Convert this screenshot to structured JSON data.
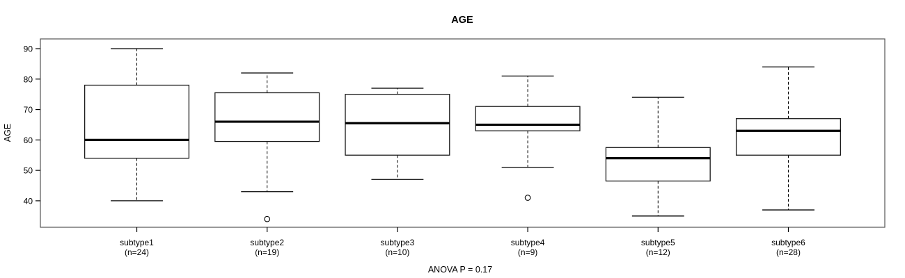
{
  "chart_data": {
    "type": "boxplot",
    "title": "AGE",
    "ylabel": "AGE",
    "annotation": "ANOVA P = 0.17",
    "yticks": [
      40,
      50,
      60,
      70,
      80,
      90
    ],
    "ylim": [
      31.3,
      93.2
    ],
    "grid": false,
    "legend": "none",
    "categories": [
      {
        "label": "subtype1",
        "sublabel": "(n=24)",
        "n": 24,
        "whisker_low": 40,
        "q1": 54,
        "median": 60,
        "q3": 78,
        "whisker_high": 90,
        "outliers": []
      },
      {
        "label": "subtype2",
        "sublabel": "(n=19)",
        "n": 19,
        "whisker_low": 43,
        "q1": 59.5,
        "median": 66,
        "q3": 75.5,
        "whisker_high": 82,
        "outliers": [
          34
        ]
      },
      {
        "label": "subtype3",
        "sublabel": "(n=10)",
        "n": 10,
        "whisker_low": 47,
        "q1": 55,
        "median": 65.5,
        "q3": 75,
        "whisker_high": 77,
        "outliers": []
      },
      {
        "label": "subtype4",
        "sublabel": "(n=9)",
        "n": 9,
        "whisker_low": 51,
        "q1": 63,
        "median": 65,
        "q3": 71,
        "whisker_high": 81,
        "outliers": [
          41
        ]
      },
      {
        "label": "subtype5",
        "sublabel": "(n=12)",
        "n": 12,
        "whisker_low": 35,
        "q1": 46.5,
        "median": 54,
        "q3": 57.5,
        "whisker_high": 74,
        "outliers": []
      },
      {
        "label": "subtype6",
        "sublabel": "(n=28)",
        "n": 28,
        "whisker_low": 37,
        "q1": 55,
        "median": 63,
        "q3": 67,
        "whisker_high": 84,
        "outliers": []
      }
    ]
  },
  "colors": {
    "background": "#ffffff",
    "frame": "#555555",
    "box_stroke": "#1a1a1a",
    "line": "#000000",
    "box_fill": "#ffffff"
  }
}
